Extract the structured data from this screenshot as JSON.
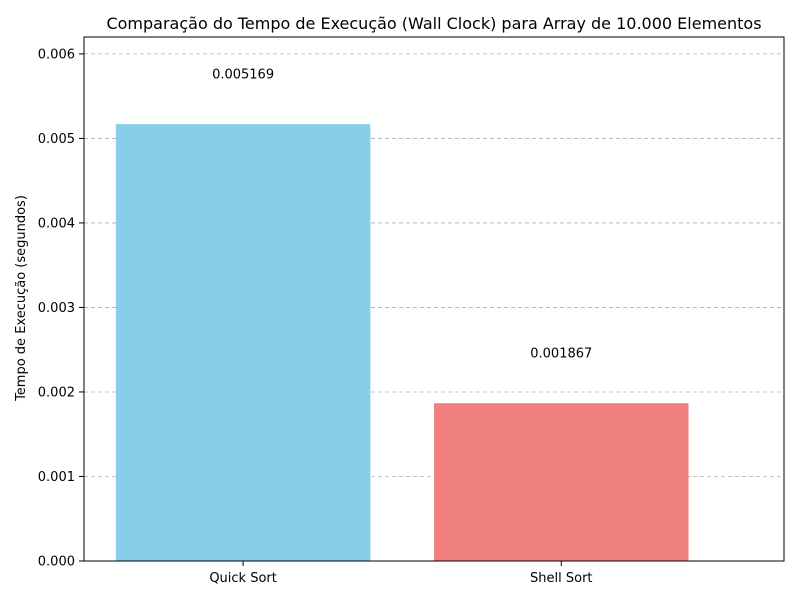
{
  "chart_data": {
    "type": "bar",
    "title": "Comparação do Tempo de Execução (Wall Clock) para Array de 10.000 Elementos",
    "xlabel": "",
    "ylabel": "Tempo de Execução (segundos)",
    "categories": [
      "Quick Sort",
      "Shell Sort"
    ],
    "values": [
      0.005169,
      0.001867
    ],
    "value_labels": [
      "0.005169",
      "0.001867"
    ],
    "colors": [
      "#87CEEB",
      "#F08080"
    ],
    "ylim": [
      0,
      0.0062
    ],
    "yticks": [
      0,
      0.001,
      0.002,
      0.003,
      0.004,
      0.005,
      0.006
    ],
    "ytick_labels": [
      "0.000",
      "0.001",
      "0.002",
      "0.003",
      "0.004",
      "0.005",
      "0.006"
    ],
    "grid": "y-dashed",
    "legend": "none"
  }
}
